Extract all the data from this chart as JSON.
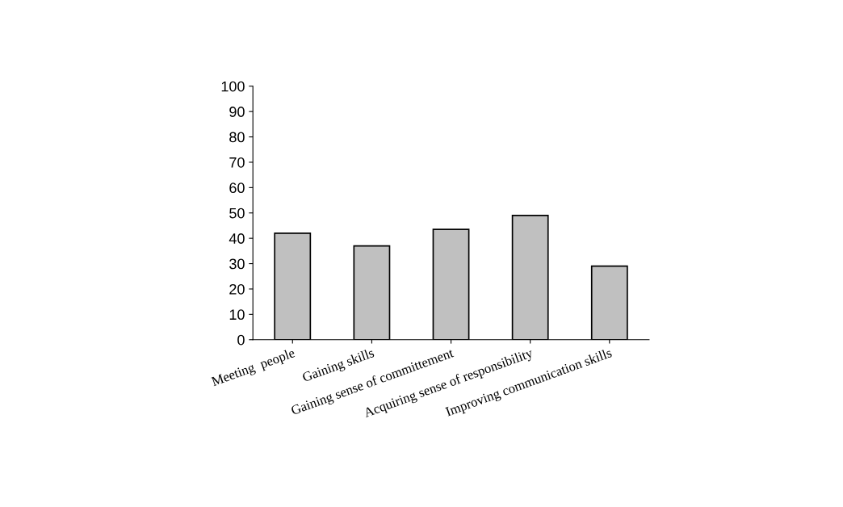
{
  "chart_data": {
    "type": "bar",
    "categories": [
      "Meeting  people",
      "Gaining skills",
      "Gaining sense of committement",
      "Acquiring sense of responsibility",
      "Improving communication skills"
    ],
    "values": [
      42,
      37,
      43.5,
      49,
      29
    ],
    "color": "#c0c0c0",
    "ylim": [
      0,
      100
    ],
    "yticks": [
      0,
      10,
      20,
      30,
      40,
      50,
      60,
      70,
      80,
      90,
      100
    ],
    "grid": false,
    "legend": false
  }
}
